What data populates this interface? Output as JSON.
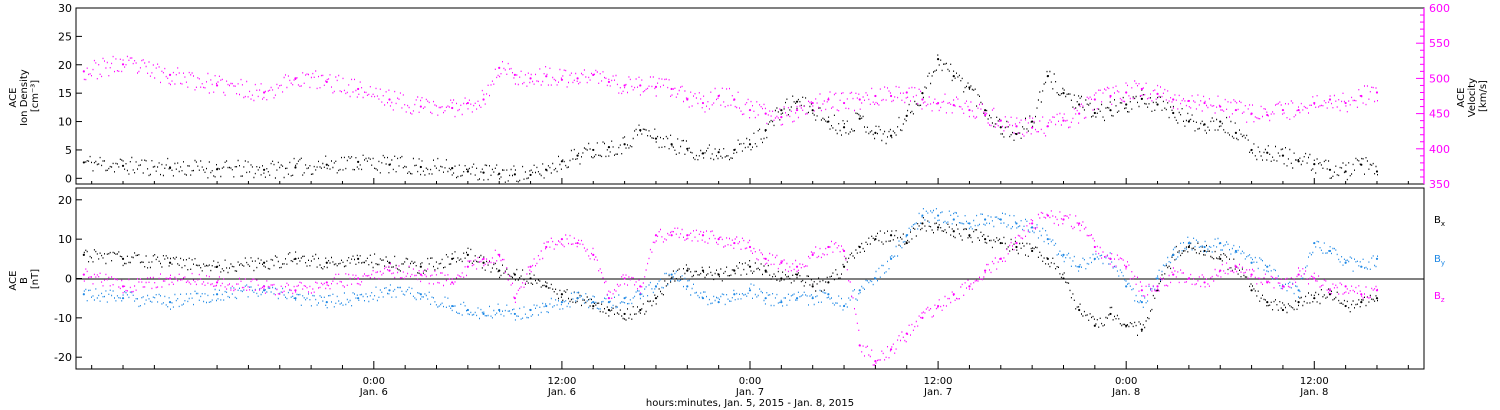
{
  "colors": {
    "black": "#000000",
    "magenta": "#ff00ff",
    "blue": "#1e88e5",
    "background": "#ffffff"
  },
  "time_axis": {
    "title": "hours:minutes, Jan. 5, 2015 - Jan. 8, 2015",
    "range_hours": [
      -19,
      67
    ],
    "ticks": [
      {
        "hours": 0,
        "line1": "0:00",
        "line2": "Jan. 6"
      },
      {
        "hours": 12,
        "line1": "12:00",
        "line2": "Jan. 6"
      },
      {
        "hours": 24,
        "line1": "0:00",
        "line2": "Jan. 7"
      },
      {
        "hours": 36,
        "line1": "12:00",
        "line2": "Jan. 7"
      },
      {
        "hours": 48,
        "line1": "0:00",
        "line2": "Jan. 8"
      },
      {
        "hours": 60,
        "line1": "12:00",
        "line2": "Jan. 8"
      }
    ]
  },
  "chart_data": [
    {
      "type": "scatter",
      "panel": "top",
      "x_unit": "hours from Jan. 6 0:00",
      "left_axis": {
        "label_lines": [
          "ACE",
          "Ion Density",
          "[cm⁻³]"
        ],
        "range": [
          -1,
          30
        ],
        "ticks": [
          0,
          5,
          10,
          15,
          20,
          25,
          30
        ]
      },
      "right_axis": {
        "label_lines": [
          "ACE",
          "Velocity",
          "[km/s]"
        ],
        "range": [
          350,
          600
        ],
        "ticks": [
          350,
          400,
          450,
          500,
          550,
          600
        ]
      },
      "series": [
        {
          "axis": "left",
          "color": "#000000",
          "x": [
            -18.5,
            -16,
            -13,
            -10,
            -7,
            -5,
            -3,
            -1,
            1,
            3,
            5,
            6,
            7,
            8,
            9,
            10,
            11,
            12,
            13,
            14,
            15,
            16,
            17,
            18,
            19,
            20,
            21,
            22,
            23,
            24,
            25,
            26,
            27,
            28,
            29,
            30,
            31,
            32,
            33,
            34,
            35,
            36,
            37,
            38,
            39,
            40,
            41,
            42,
            43,
            44,
            45,
            46,
            47,
            48,
            49,
            50,
            51,
            52,
            53,
            54,
            55,
            56,
            57,
            58,
            59,
            60,
            61,
            62,
            63,
            64
          ],
          "y": [
            2.8,
            2.2,
            1.9,
            1.6,
            1.5,
            1.9,
            2.4,
            2.9,
            2.4,
            2,
            1.8,
            1.2,
            1,
            0.8,
            0.7,
            0.6,
            1.5,
            3,
            4,
            5,
            5.5,
            6,
            8.5,
            7,
            6,
            5.2,
            4.4,
            4.6,
            5,
            6,
            8.5,
            12,
            13.5,
            12,
            10,
            9,
            10.5,
            8,
            7.5,
            11,
            15,
            21,
            18,
            16,
            12,
            9,
            7.8,
            10,
            18,
            15,
            13,
            11.5,
            12,
            13,
            14,
            13,
            11.5,
            10,
            9.5,
            10,
            8,
            5,
            4.5,
            4,
            3,
            2.5,
            1.5,
            1.2,
            2.4,
            1.2
          ]
        },
        {
          "axis": "right",
          "color": "#ff00ff",
          "x": [
            -18.5,
            -16,
            -13,
            -10,
            -7,
            -5,
            -3,
            -1,
            1,
            3,
            5,
            6,
            7,
            8,
            9,
            10,
            11,
            12,
            13,
            14,
            15,
            16,
            17,
            18,
            19,
            20,
            21,
            22,
            23,
            24,
            25,
            26,
            27,
            28,
            29,
            30,
            31,
            32,
            33,
            34,
            35,
            36,
            37,
            38,
            39,
            40,
            41,
            42,
            43,
            44,
            45,
            46,
            47,
            48,
            49,
            50,
            51,
            52,
            53,
            54,
            55,
            56,
            57,
            58,
            59,
            60,
            61,
            62,
            63,
            64
          ],
          "y": [
            510,
            520,
            505,
            490,
            480,
            500,
            495,
            485,
            470,
            460,
            458,
            465,
            470,
            515,
            505,
            500,
            503,
            498,
            500,
            505,
            495,
            490,
            490,
            488,
            485,
            470,
            465,
            475,
            470,
            455,
            450,
            445,
            455,
            465,
            470,
            465,
            470,
            475,
            475,
            480,
            470,
            465,
            462,
            455,
            448,
            440,
            432,
            430,
            432,
            440,
            450,
            470,
            475,
            480,
            485,
            478,
            470,
            468,
            465,
            460,
            455,
            450,
            448,
            455,
            455,
            465,
            470,
            465,
            475,
            480
          ]
        }
      ]
    },
    {
      "type": "scatter",
      "panel": "bottom",
      "x_unit": "hours from Jan. 6 0:00",
      "left_axis": {
        "label_lines": [
          "ACE",
          "B",
          "[nT]"
        ],
        "range": [
          -23,
          23
        ],
        "ticks": [
          -20,
          -10,
          0,
          10,
          20
        ]
      },
      "series": [
        {
          "name": "Bx",
          "color": "#000000",
          "x": [
            -18.5,
            -16,
            -13,
            -10,
            -7,
            -5,
            -3,
            -1,
            1,
            3,
            5,
            6,
            7,
            8,
            9,
            10,
            11,
            12,
            13,
            14,
            15,
            16,
            17,
            18,
            19,
            20,
            21,
            22,
            23,
            24,
            25,
            26,
            27,
            28,
            29,
            30,
            31,
            32,
            33,
            34,
            35,
            36,
            37,
            38,
            39,
            40,
            41,
            42,
            43,
            44,
            45,
            46,
            47,
            48,
            49,
            50,
            51,
            52,
            53,
            54,
            55,
            56,
            57,
            58,
            59,
            60,
            61,
            62,
            63,
            64
          ],
          "y": [
            6,
            5,
            4,
            3,
            4,
            5,
            4,
            5,
            4,
            3,
            5,
            6,
            4,
            2,
            1,
            0,
            -2,
            -4,
            -5,
            -7,
            -8,
            -9,
            -8,
            -5,
            0,
            2,
            2,
            1,
            2,
            3,
            2,
            0,
            1,
            -2,
            -1,
            3,
            8,
            10,
            11,
            9,
            14,
            13,
            12,
            11,
            10,
            9,
            8,
            7,
            5,
            0,
            -8,
            -12,
            -9,
            -12,
            -13,
            -3,
            6,
            8,
            7,
            5,
            3,
            -3,
            -6,
            -8,
            -6,
            -5,
            -4,
            -7,
            -6,
            -5
          ]
        },
        {
          "name": "By",
          "color": "#1e88e5",
          "x": [
            -18.5,
            -16,
            -13,
            -10,
            -7,
            -5,
            -3,
            -1,
            1,
            3,
            5,
            6,
            7,
            8,
            9,
            10,
            11,
            12,
            13,
            14,
            15,
            16,
            17,
            18,
            19,
            20,
            21,
            22,
            23,
            24,
            25,
            26,
            27,
            28,
            29,
            30,
            31,
            32,
            33,
            34,
            35,
            36,
            37,
            38,
            39,
            40,
            41,
            42,
            43,
            44,
            45,
            46,
            47,
            48,
            49,
            50,
            51,
            52,
            53,
            54,
            55,
            56,
            57,
            58,
            59,
            60,
            61,
            62,
            63,
            64
          ],
          "y": [
            -4,
            -5,
            -6,
            -4,
            -3,
            -5,
            -6,
            -5,
            -3,
            -4,
            -7,
            -8,
            -9,
            -8,
            -9,
            -8,
            -7,
            -6,
            -5,
            -6,
            -6,
            -5,
            -4,
            -2,
            1,
            -2,
            -5,
            -6,
            -4,
            -3,
            -5,
            -6,
            -5,
            -5,
            -4,
            -7,
            -3,
            0,
            5,
            11,
            16,
            16,
            15,
            14,
            15,
            15,
            14,
            13,
            10,
            6,
            3,
            5,
            5,
            -2,
            -6,
            0,
            6,
            9,
            8,
            9,
            7,
            4,
            3,
            -2,
            -3,
            9,
            7,
            4,
            3,
            5
          ]
        },
        {
          "name": "Bz",
          "color": "#ff00ff",
          "x": [
            -18.5,
            -16,
            -13,
            -10,
            -7,
            -5,
            -3,
            -1,
            1,
            3,
            5,
            6,
            7,
            8,
            9,
            10,
            11,
            12,
            13,
            14,
            15,
            16,
            17,
            18,
            19,
            20,
            21,
            22,
            23,
            24,
            25,
            26,
            27,
            28,
            29,
            30,
            31,
            32,
            33,
            34,
            35,
            36,
            37,
            38,
            39,
            40,
            41,
            42,
            43,
            44,
            45,
            46,
            47,
            48,
            49,
            50,
            51,
            52,
            53,
            54,
            55,
            56,
            57,
            58,
            59,
            60,
            61,
            62,
            63,
            64
          ],
          "y": [
            1,
            -2,
            0,
            -1,
            -2,
            -3,
            -1,
            0,
            2,
            1,
            -1,
            3,
            5,
            6,
            -5,
            3,
            8,
            10,
            9,
            6,
            -5,
            0,
            -2,
            11,
            11,
            11,
            11,
            10,
            9,
            8,
            5,
            4,
            3,
            6,
            8,
            7,
            -17,
            -21,
            -18,
            -14,
            -10,
            -7,
            -4,
            -2,
            2,
            5,
            9,
            14,
            16,
            15,
            14,
            8,
            5,
            3,
            -3,
            -2,
            1,
            0,
            -1,
            2,
            3,
            1,
            -1,
            -2,
            1,
            0,
            -3,
            -2,
            -4,
            -3
          ]
        }
      ],
      "legend": [
        {
          "base": "B",
          "sub": "x",
          "color": "#000000"
        },
        {
          "base": "B",
          "sub": "y",
          "color": "#1e88e5"
        },
        {
          "base": "B",
          "sub": "z",
          "color": "#ff00ff"
        }
      ]
    }
  ]
}
